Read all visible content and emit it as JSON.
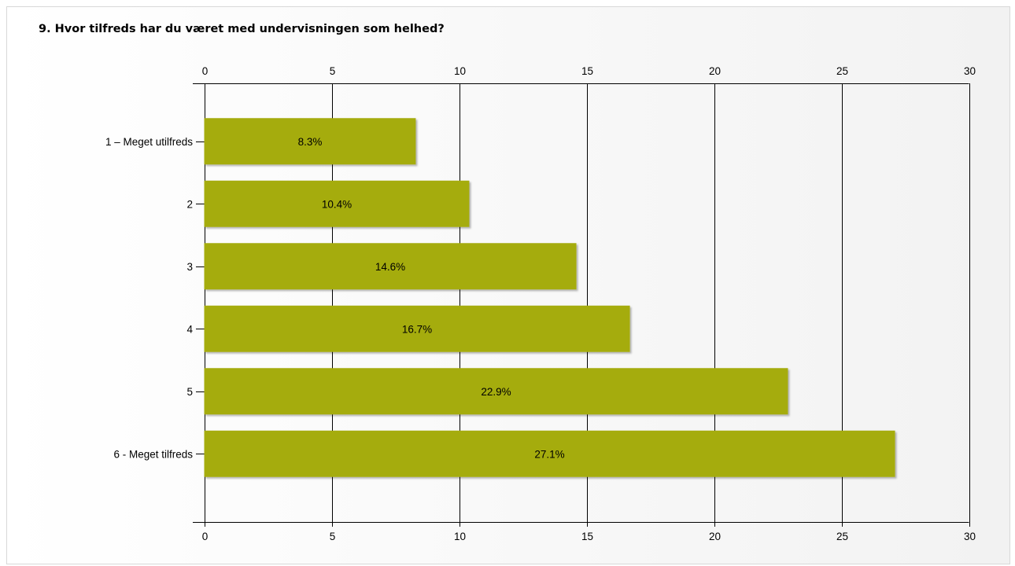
{
  "chart_data": {
    "type": "bar",
    "orientation": "horizontal",
    "title": "9. Hvor tilfreds har du været med undervisningen som helhed?",
    "categories": [
      "1 – Meget utilfreds",
      "2",
      "3",
      "4",
      "5",
      "6 - Meget tilfreds"
    ],
    "values": [
      8.3,
      10.4,
      14.6,
      16.7,
      22.9,
      27.1
    ],
    "value_labels": [
      "8.3%",
      "10.4%",
      "14.6%",
      "16.7%",
      "22.9%",
      "27.1%"
    ],
    "xlim": [
      0,
      30
    ],
    "xticks": [
      0,
      5,
      10,
      15,
      20,
      25,
      30
    ],
    "tick_labels": [
      "0",
      "5",
      "10",
      "15",
      "20",
      "25",
      "30"
    ],
    "axis_position": "top and bottom",
    "grid": true,
    "bar_color": "#a5ac10"
  }
}
